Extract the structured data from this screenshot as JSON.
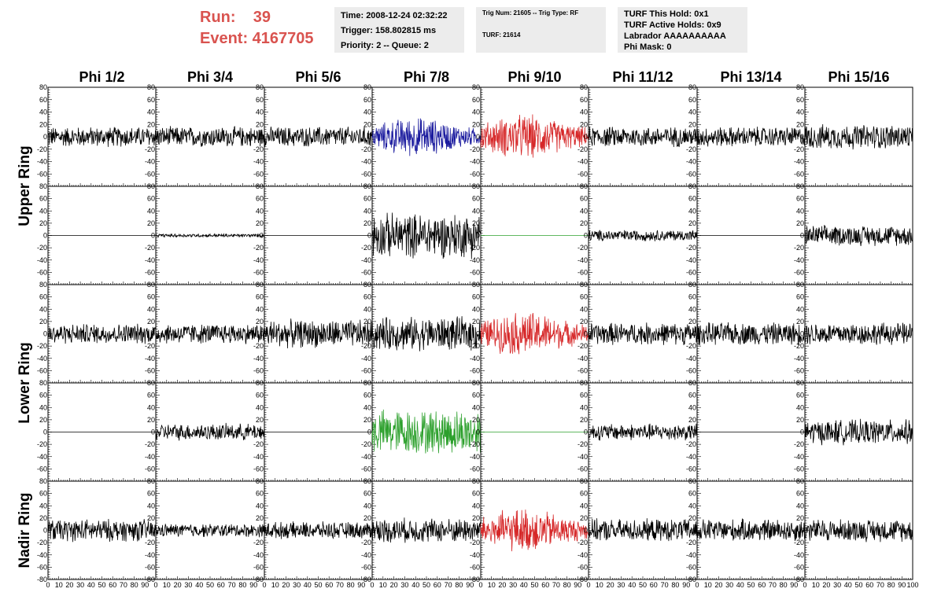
{
  "header": {
    "run_label": "Run:    39",
    "event_label": "Event: 4167705",
    "info_time": [
      "Time: 2008-12-24 02:32:22",
      "Trigger: 158.802815 ms",
      "Priority: 2 -- Queue: 2"
    ],
    "info_trig": [
      "Trig Num: 21605 -- Trig Type: RF",
      "TURF: 21614"
    ],
    "info_turf": [
      "TURF This Hold: 0x1",
      "TURF Active Holds: 0x9",
      "Labrador AAAAAAAAAA",
      "Phi Mask: 0"
    ]
  },
  "chart_data": {
    "type": "line",
    "columns": [
      "Phi 1/2",
      "Phi 3/4",
      "Phi 5/6",
      "Phi 7/8",
      "Phi 9/10",
      "Phi 11/12",
      "Phi 13/14",
      "Phi 15/16"
    ],
    "ring_labels": [
      "Upper Ring",
      "Lower Ring",
      "Nadir Ring"
    ],
    "xlim": [
      0,
      100
    ],
    "ylim": [
      -80,
      80
    ],
    "y_ticks": [
      -80,
      -60,
      -40,
      -20,
      0,
      20,
      40,
      60,
      80
    ],
    "x_ticks": [
      0,
      10,
      20,
      30,
      40,
      50,
      60,
      70,
      80,
      90,
      100
    ],
    "colors": {
      "black": "#000000",
      "blue": "#1a1a9e",
      "red": "#d62728",
      "green": "#2ca02c",
      "flat": "#2ca02c"
    },
    "panels": [
      [
        {
          "color": "black",
          "amplitude": 18,
          "mode": "noise",
          "x_range": [
            0,
            100
          ]
        },
        {
          "color": "black",
          "amplitude": 18,
          "mode": "noise",
          "x_range": [
            0,
            100
          ]
        },
        {
          "color": "black",
          "amplitude": 18,
          "mode": "noise",
          "x_range": [
            0,
            100
          ]
        },
        {
          "color": "blue",
          "amplitude": 35,
          "mode": "pulse",
          "x_range": [
            0,
            100
          ]
        },
        {
          "color": "red",
          "amplitude": 40,
          "mode": "pulse",
          "x_range": [
            0,
            100
          ]
        },
        {
          "color": "black",
          "amplitude": 18,
          "mode": "noise",
          "x_range": [
            0,
            100
          ]
        },
        {
          "color": "black",
          "amplitude": 18,
          "mode": "noise",
          "x_range": [
            0,
            100
          ]
        },
        {
          "color": "black",
          "amplitude": 22,
          "mode": "noise",
          "x_range": [
            0,
            100
          ]
        }
      ],
      [
        {
          "color": "black",
          "amplitude": 0,
          "mode": "flat",
          "x_range": [
            0,
            100
          ]
        },
        {
          "color": "black",
          "amplitude": 3,
          "mode": "noise",
          "x_range": [
            0,
            100
          ]
        },
        {
          "color": "black",
          "amplitude": 0,
          "mode": "flat",
          "x_range": [
            0,
            100
          ]
        },
        {
          "color": "black",
          "amplitude": 40,
          "mode": "noise",
          "x_range": [
            0,
            100
          ]
        },
        {
          "color": "flat",
          "amplitude": 0,
          "mode": "flat",
          "x_range": [
            0,
            100
          ]
        },
        {
          "color": "black",
          "amplitude": 10,
          "mode": "noise",
          "x_range": [
            0,
            100
          ]
        },
        {
          "color": "black",
          "amplitude": 0,
          "mode": "flat",
          "x_range": [
            0,
            100
          ]
        },
        {
          "color": "black",
          "amplitude": 18,
          "mode": "noise",
          "x_range": [
            0,
            100
          ]
        }
      ],
      [
        {
          "color": "black",
          "amplitude": 18,
          "mode": "noise",
          "x_range": [
            0,
            100
          ]
        },
        {
          "color": "black",
          "amplitude": 18,
          "mode": "noise",
          "x_range": [
            0,
            100
          ]
        },
        {
          "color": "black",
          "amplitude": 25,
          "mode": "noise",
          "x_range": [
            0,
            100
          ]
        },
        {
          "color": "black",
          "amplitude": 30,
          "mode": "noise",
          "x_range": [
            0,
            100
          ]
        },
        {
          "color": "red",
          "amplitude": 40,
          "mode": "pulse",
          "x_range": [
            0,
            100
          ]
        },
        {
          "color": "black",
          "amplitude": 20,
          "mode": "noise",
          "x_range": [
            0,
            100
          ]
        },
        {
          "color": "black",
          "amplitude": 20,
          "mode": "noise",
          "x_range": [
            0,
            100
          ]
        },
        {
          "color": "black",
          "amplitude": 20,
          "mode": "noise",
          "x_range": [
            0,
            100
          ]
        }
      ],
      [
        {
          "color": "black",
          "amplitude": 0,
          "mode": "flat",
          "x_range": [
            0,
            100
          ]
        },
        {
          "color": "black",
          "amplitude": 15,
          "mode": "noise",
          "x_range": [
            0,
            100
          ]
        },
        {
          "color": "black",
          "amplitude": 0,
          "mode": "flat",
          "x_range": [
            0,
            100
          ]
        },
        {
          "color": "green",
          "amplitude": 40,
          "mode": "noise",
          "x_range": [
            0,
            100
          ]
        },
        {
          "color": "flat",
          "amplitude": 0,
          "mode": "flat",
          "x_range": [
            0,
            100
          ]
        },
        {
          "color": "black",
          "amplitude": 15,
          "mode": "noise",
          "x_range": [
            0,
            100
          ]
        },
        {
          "color": "black",
          "amplitude": 0,
          "mode": "flat",
          "x_range": [
            0,
            100
          ]
        },
        {
          "color": "black",
          "amplitude": 22,
          "mode": "noise",
          "x_range": [
            0,
            100
          ]
        }
      ],
      [
        {
          "color": "black",
          "amplitude": 20,
          "mode": "noise",
          "x_range": [
            0,
            100
          ]
        },
        {
          "color": "black",
          "amplitude": 12,
          "mode": "noise",
          "x_range": [
            0,
            100
          ]
        },
        {
          "color": "black",
          "amplitude": 15,
          "mode": "noise",
          "x_range": [
            0,
            100
          ]
        },
        {
          "color": "black",
          "amplitude": 22,
          "mode": "noise",
          "x_range": [
            0,
            100
          ]
        },
        {
          "color": "red",
          "amplitude": 40,
          "mode": "pulse",
          "x_range": [
            0,
            100
          ]
        },
        {
          "color": "black",
          "amplitude": 20,
          "mode": "noise",
          "x_range": [
            0,
            100
          ]
        },
        {
          "color": "black",
          "amplitude": 20,
          "mode": "noise",
          "x_range": [
            0,
            100
          ]
        },
        {
          "color": "black",
          "amplitude": 20,
          "mode": "noise",
          "x_range": [
            0,
            100
          ]
        }
      ]
    ]
  }
}
